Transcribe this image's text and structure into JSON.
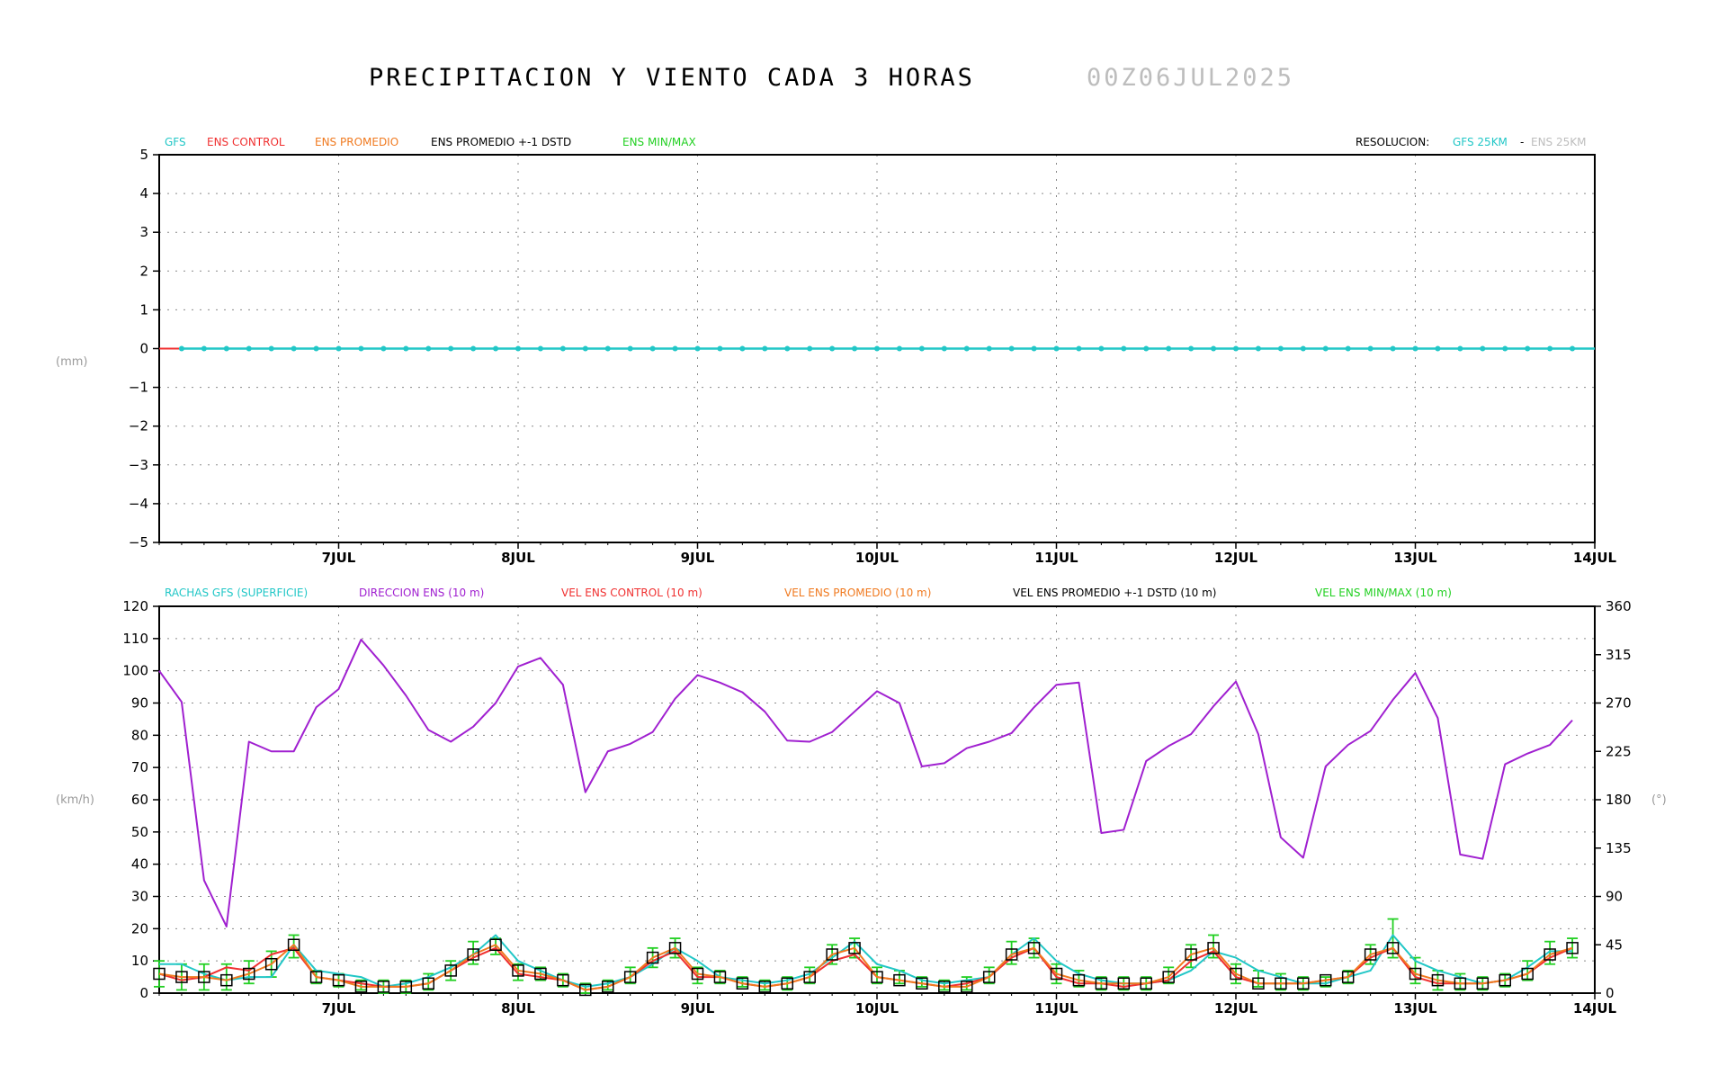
{
  "header": {
    "title": "PRECIPITACION Y VIENTO CADA 3 HORAS",
    "date": "00Z06JUL2025"
  },
  "colors": {
    "gfs": "#22c7c7",
    "control": "#f03030",
    "promedio": "#f07a20",
    "std": "#000000",
    "minmax": "#22d022",
    "direccion": "#a020d0",
    "axis_label": "#9a9a9a",
    "grid": "#8a8a8a"
  },
  "precip_legend": {
    "gfs": "GFS",
    "control": "ENS CONTROL",
    "promedio": "ENS PROMEDIO",
    "std": "ENS PROMEDIO +-1 DSTD",
    "minmax": "ENS MIN/MAX",
    "resolucion_label": "RESOLUCION:",
    "res_gfs": "GFS 25KM",
    "res_sep": "-",
    "res_ens": "ENS 25KM"
  },
  "wind_legend": {
    "rachas": "RACHAS GFS (SUPERFICIE)",
    "direccion": "DIRECCION ENS (10 m)",
    "control": "VEL ENS CONTROL (10 m)",
    "promedio": "VEL ENS PROMEDIO (10 m)",
    "std": "VEL ENS PROMEDIO +-1 DSTD (10 m)",
    "minmax": "VEL ENS MIN/MAX (10 m)"
  },
  "chart_data": [
    {
      "type": "line",
      "ylabel": "(mm)",
      "ylim": [
        -5,
        5
      ],
      "yticks": [
        "5",
        "4",
        "3",
        "2",
        "1",
        "0",
        "−1",
        "−2",
        "−3",
        "−4",
        "−5"
      ],
      "xticks": [
        "7JUL",
        "8JUL",
        "9JUL",
        "10JUL",
        "11JUL",
        "12JUL",
        "13JUL",
        "14JUL"
      ],
      "x_hours": [
        0,
        3,
        6,
        9,
        12,
        15,
        18,
        21,
        24,
        27,
        30,
        33,
        36,
        39,
        42,
        45,
        48,
        51,
        54,
        57,
        60,
        63,
        66,
        69,
        72,
        75,
        78,
        81,
        84,
        87,
        90,
        93,
        96,
        99,
        102,
        105,
        108,
        111,
        114,
        117,
        120,
        123,
        126,
        129,
        132,
        135,
        138,
        141,
        144,
        147,
        150,
        153,
        156,
        159,
        162,
        165,
        168,
        171,
        174,
        177,
        180,
        183,
        186,
        189
      ],
      "grid": true,
      "series": [
        {
          "name": "GFS",
          "values": [
            0,
            0,
            0,
            0,
            0,
            0,
            0,
            0,
            0,
            0,
            0,
            0,
            0,
            0,
            0,
            0,
            0,
            0,
            0,
            0,
            0,
            0,
            0,
            0,
            0,
            0,
            0,
            0,
            0,
            0,
            0,
            0,
            0,
            0,
            0,
            0,
            0,
            0,
            0,
            0,
            0,
            0,
            0,
            0,
            0,
            0,
            0,
            0,
            0,
            0,
            0,
            0,
            0,
            0,
            0,
            0,
            0,
            0,
            0,
            0,
            0,
            0,
            0,
            0
          ]
        },
        {
          "name": "ENS CONTROL",
          "values": [
            0,
            0,
            0,
            0,
            0,
            0,
            0,
            0,
            0,
            0,
            0,
            0,
            0,
            0,
            0,
            0,
            0,
            0,
            0,
            0,
            0,
            0,
            0,
            0,
            0,
            0,
            0,
            0,
            0,
            0,
            0,
            0,
            0,
            0,
            0,
            0,
            0,
            0,
            0,
            0,
            0,
            0,
            0,
            0,
            0,
            0,
            0,
            0,
            0,
            0,
            0,
            0,
            0,
            0,
            0,
            0,
            0,
            0,
            0,
            0,
            0,
            0,
            0,
            0
          ]
        }
      ]
    },
    {
      "type": "line",
      "ylabel": "(km/h)",
      "y2label": "(°)",
      "ylim": [
        0,
        120
      ],
      "y2lim": [
        0,
        360
      ],
      "yticks": [
        "120",
        "110",
        "100",
        "90",
        "80",
        "70",
        "60",
        "50",
        "40",
        "30",
        "20",
        "10",
        "0"
      ],
      "y2ticks": [
        "360",
        "315",
        "270",
        "225",
        "180",
        "135",
        "90",
        "45",
        "0"
      ],
      "xticks": [
        "7JUL",
        "8JUL",
        "9JUL",
        "10JUL",
        "11JUL",
        "12JUL",
        "13JUL",
        "14JUL"
      ],
      "x_hours": [
        0,
        3,
        6,
        9,
        12,
        15,
        18,
        21,
        24,
        27,
        30,
        33,
        36,
        39,
        42,
        45,
        48,
        51,
        54,
        57,
        60,
        63,
        66,
        69,
        72,
        75,
        78,
        81,
        84,
        87,
        90,
        93,
        96,
        99,
        102,
        105,
        108,
        111,
        114,
        117,
        120,
        123,
        126,
        129,
        132,
        135,
        138,
        141,
        144,
        147,
        150,
        153,
        156,
        159,
        162,
        165,
        168,
        171,
        174,
        177,
        180,
        183,
        186,
        189
      ],
      "grid": true,
      "series": [
        {
          "name": "DIRECCION ENS (10 m)",
          "axis": "right",
          "values": [
            300,
            271,
            105,
            62,
            234,
            225,
            225,
            266,
            283,
            329,
            305,
            277,
            245,
            234,
            248,
            270,
            304,
            312,
            287,
            187,
            225,
            232,
            243,
            274,
            296,
            289,
            280,
            262,
            235,
            234,
            243,
            262,
            281,
            270,
            211,
            214,
            228,
            234,
            242,
            266,
            287,
            289,
            149,
            152,
            216,
            230,
            241,
            267,
            290,
            241,
            145,
            126,
            211,
            231,
            244,
            273,
            298,
            256,
            129,
            125,
            213,
            223,
            231,
            254
          ]
        },
        {
          "name": "RACHAS GFS (SUPERFICIE)",
          "values": [
            9,
            9,
            6,
            4,
            5,
            5,
            15,
            7,
            6,
            5,
            2,
            3,
            5,
            8,
            12,
            18,
            10,
            7,
            4,
            2,
            3,
            5,
            9,
            14,
            10,
            5,
            4,
            3,
            4,
            6,
            11,
            16,
            9,
            7,
            4,
            3,
            4,
            5,
            12,
            17,
            10,
            6,
            4,
            3,
            3,
            4,
            7,
            13,
            11,
            7,
            5,
            3,
            3,
            5,
            7,
            18,
            10,
            7,
            5,
            3,
            4,
            8,
            13,
            13
          ]
        },
        {
          "name": "VEL ENS CONTROL (10 m)",
          "values": [
            6,
            4,
            5,
            8,
            7,
            12,
            14,
            5,
            4,
            3,
            2,
            2,
            3,
            7,
            11,
            14,
            6,
            5,
            4,
            1,
            2,
            5,
            10,
            13,
            5,
            5,
            3,
            2,
            3,
            5,
            10,
            12,
            5,
            4,
            3,
            2,
            3,
            5,
            11,
            14,
            5,
            3,
            3,
            2,
            3,
            4,
            10,
            13,
            5,
            3,
            3,
            3,
            4,
            5,
            11,
            14,
            5,
            3,
            3,
            3,
            4,
            6,
            11,
            14
          ]
        },
        {
          "name": "VEL ENS PROMEDIO (10 m)",
          "values": [
            6,
            5,
            5,
            4,
            6,
            9,
            15,
            5,
            4,
            2,
            2,
            2,
            3,
            7,
            12,
            15,
            7,
            6,
            4,
            1,
            2,
            5,
            11,
            14,
            6,
            5,
            3,
            2,
            3,
            5,
            12,
            14,
            5,
            4,
            3,
            2,
            2,
            5,
            12,
            14,
            6,
            4,
            3,
            3,
            3,
            5,
            12,
            14,
            6,
            3,
            3,
            3,
            4,
            5,
            12,
            14,
            6,
            4,
            3,
            3,
            4,
            6,
            12,
            14
          ]
        },
        {
          "name": "VEL ENS MIN/MAX (10 m)",
          "values_min": [
            2,
            1,
            1,
            1,
            3,
            5,
            11,
            3,
            2,
            1,
            0,
            0,
            1,
            4,
            9,
            12,
            4,
            4,
            2,
            0,
            1,
            3,
            8,
            11,
            3,
            3,
            2,
            1,
            1,
            3,
            9,
            11,
            3,
            3,
            2,
            1,
            1,
            3,
            9,
            11,
            3,
            2,
            1,
            1,
            1,
            3,
            8,
            11,
            3,
            2,
            1,
            1,
            2,
            3,
            9,
            11,
            3,
            1,
            1,
            1,
            2,
            4,
            9,
            11
          ],
          "values_max": [
            10,
            9,
            9,
            9,
            10,
            13,
            18,
            7,
            6,
            4,
            4,
            4,
            6,
            10,
            16,
            17,
            9,
            8,
            6,
            3,
            4,
            8,
            14,
            17,
            8,
            7,
            5,
            4,
            5,
            8,
            15,
            17,
            8,
            7,
            5,
            4,
            5,
            8,
            16,
            17,
            9,
            7,
            5,
            5,
            5,
            8,
            15,
            18,
            9,
            7,
            6,
            5,
            5,
            7,
            15,
            23,
            11,
            7,
            6,
            5,
            6,
            10,
            16,
            17
          ]
        }
      ]
    }
  ]
}
